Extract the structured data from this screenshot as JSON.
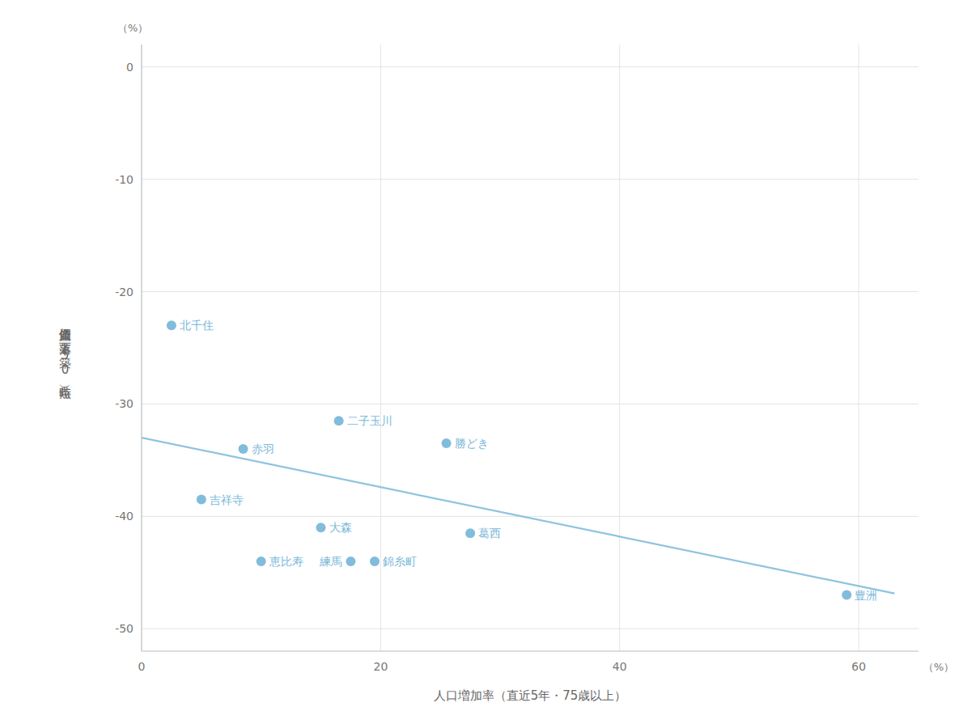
{
  "chart_data": {
    "type": "scatter",
    "xlabel": "人口増加率（直近5年・75歳以上）",
    "ylabel": "資産価値 下落率 （築50年時点）",
    "xlabel_unit": "（%）",
    "ylabel_unit": "（%）",
    "series": [
      {
        "type": "scatter",
        "color": "#7ab8d9",
        "labels": [
          "北千住",
          "吉祥寺",
          "赤羽",
          "恵比寿",
          "二子玉川",
          "大森",
          "練馬",
          "錦糸町",
          "葛西",
          "勝どき",
          "豊洲"
        ],
        "x": [
          2.5,
          5.0,
          8.5,
          10.0,
          16.5,
          15.0,
          17.5,
          19.5,
          27.5,
          25.5,
          59.0
        ],
        "values": [
          -23.0,
          -38.5,
          -34.0,
          -44.0,
          -31.5,
          -41.0,
          -44.0,
          -44.0,
          -41.5,
          -33.5,
          -47.0
        ]
      },
      {
        "type": "line",
        "color": "#7ab8d9",
        "x": [
          0,
          63
        ],
        "values": [
          -33.0,
          -46.86
        ]
      }
    ],
    "xlim": [
      0,
      65
    ],
    "ylim": [
      -52,
      2
    ],
    "xticks": [
      0,
      20,
      40,
      60
    ],
    "yticks": [
      0,
      -10,
      -20,
      -30,
      -40,
      -50
    ],
    "grid": true
  }
}
